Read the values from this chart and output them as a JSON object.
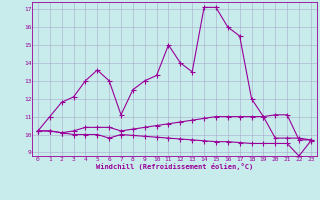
{
  "xlabel": "Windchill (Refroidissement éolien,°C)",
  "bg_color": "#c8ecec",
  "line_color": "#990099",
  "grid_color": "#aaaacc",
  "xlim": [
    -0.5,
    23.5
  ],
  "ylim": [
    8.8,
    17.4
  ],
  "yticks": [
    9,
    10,
    11,
    12,
    13,
    14,
    15,
    16,
    17
  ],
  "xticks": [
    0,
    1,
    2,
    3,
    4,
    5,
    6,
    7,
    8,
    9,
    10,
    11,
    12,
    13,
    14,
    15,
    16,
    17,
    18,
    19,
    20,
    21,
    22,
    23
  ],
  "series1_x": [
    0,
    1,
    2,
    3,
    4,
    5,
    6,
    7,
    8,
    9,
    10,
    11,
    12,
    13,
    14,
    15,
    16,
    17,
    18,
    19,
    20,
    21,
    22,
    23
  ],
  "series1_y": [
    10.2,
    11.0,
    11.8,
    12.1,
    13.0,
    13.6,
    13.0,
    11.1,
    12.5,
    13.0,
    13.3,
    15.0,
    14.0,
    13.5,
    17.1,
    17.1,
    16.0,
    15.5,
    12.0,
    11.0,
    11.1,
    11.1,
    9.7,
    9.7
  ],
  "series2_x": [
    0,
    1,
    2,
    3,
    4,
    5,
    6,
    7,
    8,
    9,
    10,
    11,
    12,
    13,
    14,
    15,
    16,
    17,
    18,
    19,
    20,
    21,
    22,
    23
  ],
  "series2_y": [
    10.2,
    10.2,
    10.1,
    10.2,
    10.4,
    10.4,
    10.4,
    10.2,
    10.3,
    10.4,
    10.5,
    10.6,
    10.7,
    10.8,
    10.9,
    11.0,
    11.0,
    11.0,
    11.0,
    11.0,
    9.8,
    9.8,
    9.8,
    9.7
  ],
  "series3_x": [
    0,
    1,
    2,
    3,
    4,
    5,
    6,
    7,
    8,
    9,
    10,
    11,
    12,
    13,
    14,
    15,
    16,
    17,
    18,
    19,
    20,
    21,
    22,
    23
  ],
  "series3_y": [
    10.2,
    10.2,
    10.1,
    10.0,
    10.0,
    10.0,
    9.8,
    10.0,
    9.95,
    9.9,
    9.85,
    9.8,
    9.75,
    9.7,
    9.65,
    9.6,
    9.6,
    9.55,
    9.5,
    9.5,
    9.5,
    9.5,
    8.8,
    9.65
  ]
}
